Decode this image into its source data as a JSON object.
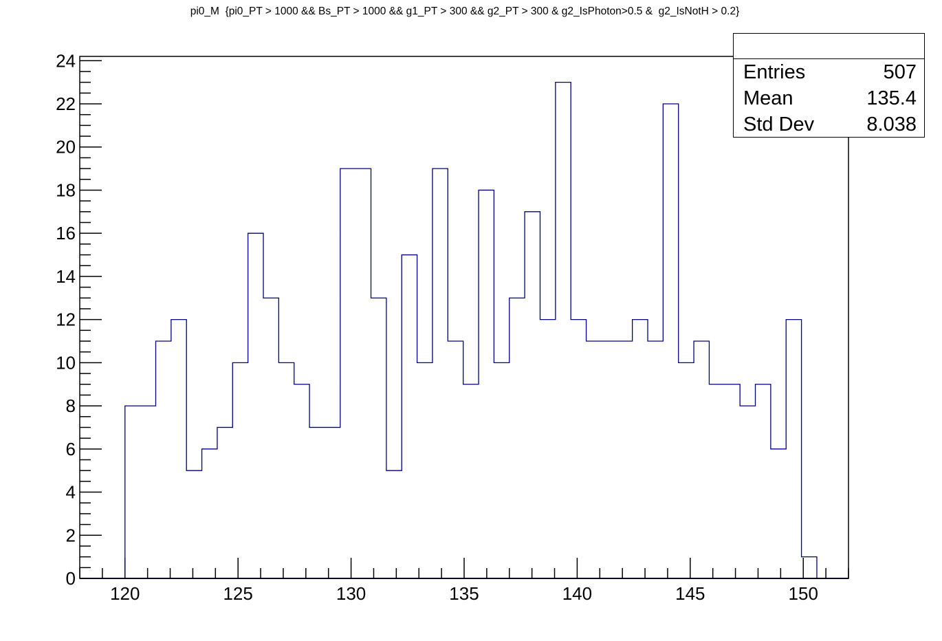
{
  "title": "pi0_M  {pi0_PT > 1000 && Bs_PT > 1000 && g1_PT > 300 && g2_PT > 300 & g2_IsPhoton>0.5 &  g2_IsNotH > 0.2}",
  "stats": {
    "entries_label": "Entries",
    "entries_value": "507",
    "mean_label": "Mean",
    "mean_value": "135.4",
    "stddev_label": "Std Dev",
    "stddev_value": "8.038"
  },
  "colors": {
    "line": "#000080",
    "axis": "#000000"
  },
  "chart_data": {
    "type": "histogram",
    "xlim": [
      118,
      152
    ],
    "ylim": [
      0,
      24.2
    ],
    "x_ticks": [
      120,
      125,
      130,
      135,
      140,
      145,
      150
    ],
    "y_ticks": [
      0,
      2,
      4,
      6,
      8,
      10,
      12,
      14,
      16,
      18,
      20,
      22,
      24
    ],
    "bin_edges": [
      120.0,
      120.68,
      121.36,
      122.04,
      122.72,
      123.4,
      124.08,
      124.76,
      125.44,
      126.12,
      126.8,
      127.48,
      128.16,
      128.84,
      129.52,
      130.2,
      130.88,
      131.56,
      132.24,
      132.92,
      133.6,
      134.28,
      134.96,
      135.64,
      136.32,
      137.0,
      137.68,
      138.36,
      139.04,
      139.72,
      140.4,
      141.08,
      141.76,
      142.44,
      143.12,
      143.8,
      144.48,
      145.16,
      145.84,
      146.52,
      147.2,
      147.88,
      148.56,
      149.24,
      149.92,
      150.6
    ],
    "values": [
      8,
      8,
      11,
      12,
      5,
      6,
      7,
      10,
      16,
      13,
      10,
      9,
      7,
      7,
      19,
      19,
      13,
      5,
      15,
      10,
      19,
      11,
      9,
      18,
      10,
      13,
      17,
      12,
      23,
      12,
      11,
      11,
      11,
      12,
      11,
      22,
      10,
      11,
      9,
      9,
      8,
      9,
      6,
      12,
      1
    ]
  }
}
